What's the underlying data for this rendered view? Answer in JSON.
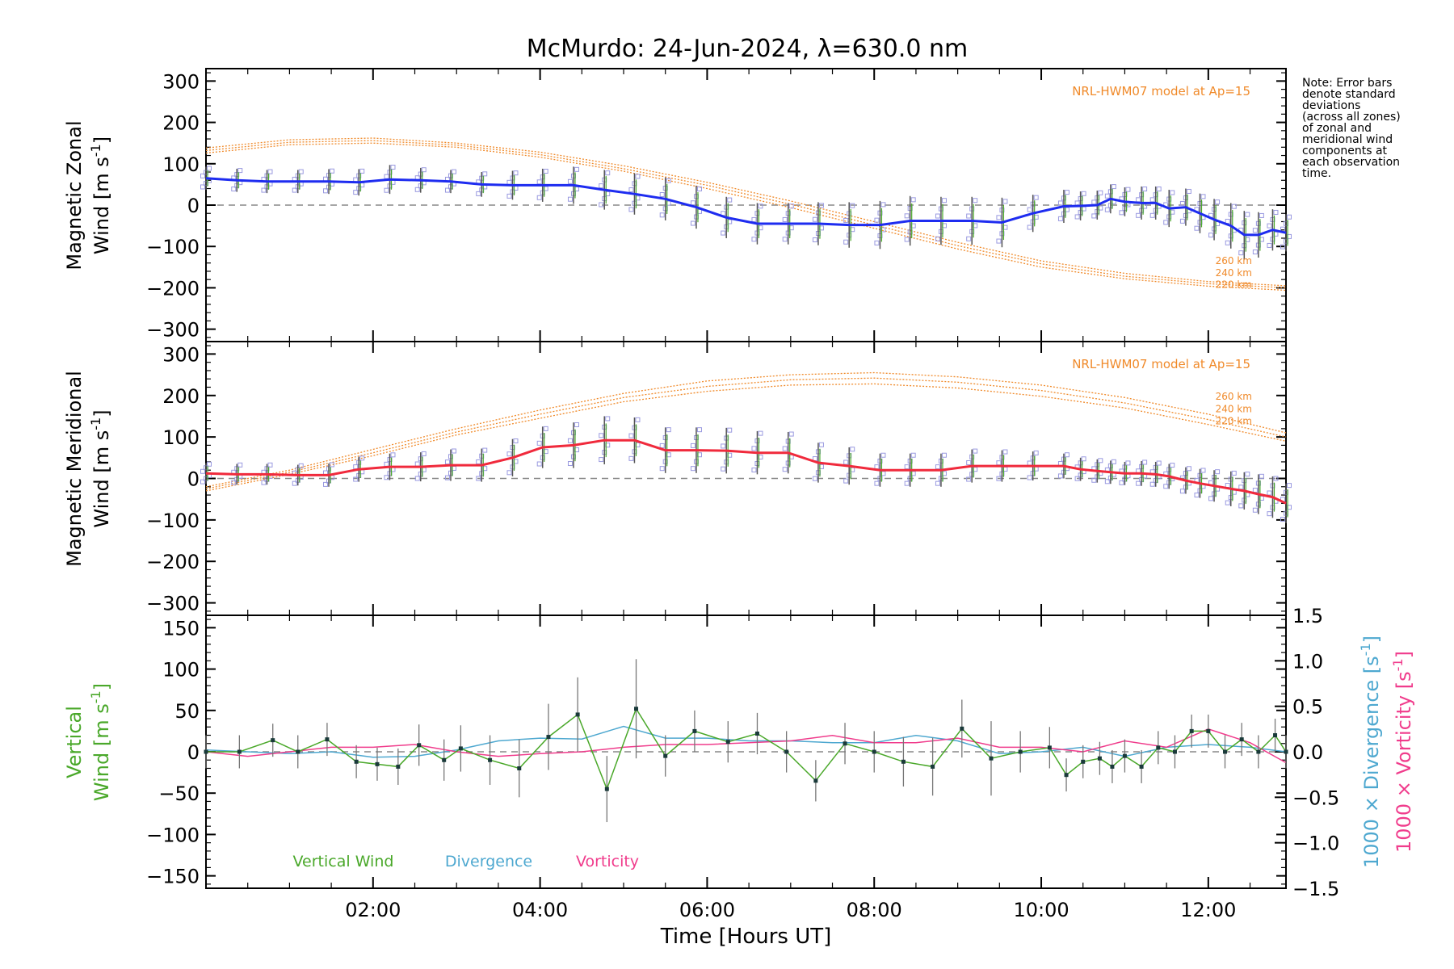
{
  "title": "McMurdo: 24-Jun-2024, λ=630.0 nm",
  "note_lines": [
    "Note: Error bars",
    "denote standard",
    "deviations",
    "(across all zones)",
    "of zonal and",
    "meridional wind",
    "components at",
    "each observation",
    "time."
  ],
  "colors": {
    "zonal": "#1e2cf0",
    "meridional": "#f02a3c",
    "model": "#f08a2a",
    "vertical": "#4aa82a",
    "divergence": "#4ea8d0",
    "vorticity": "#f03c8c",
    "errorbar": "#555555",
    "scatter": "#9a9ae0"
  },
  "chart_data": [
    {
      "type": "line",
      "name": "zonal",
      "ylabel_line1": "Magnetic Zonal",
      "ylabel_line2_prefix": "Wind [m s",
      "ylabel_sup": "-1",
      "ylabel_close": "]",
      "ylim": [
        -330,
        330
      ],
      "yticks": [
        "300",
        "200",
        "100",
        "0",
        "−100",
        "−200",
        "−300"
      ],
      "ytick_values": [
        300,
        200,
        100,
        0,
        -100,
        -200,
        -300
      ],
      "model_label": "NRL-HWM07 model at Ap=15",
      "model_alt_labels": [
        "260 km",
        "240 km",
        "220 km"
      ],
      "x": [
        0.0,
        0.37,
        0.73,
        1.1,
        1.47,
        1.83,
        2.2,
        2.57,
        2.93,
        3.3,
        3.67,
        4.03,
        4.4,
        4.77,
        5.13,
        5.5,
        5.87,
        6.23,
        6.6,
        6.97,
        7.33,
        7.7,
        8.07,
        8.43,
        8.8,
        9.17,
        9.53,
        9.9,
        10.27,
        10.47,
        10.67,
        10.83,
        11.0,
        11.2,
        11.37,
        11.53,
        11.73,
        11.9,
        12.07,
        12.27,
        12.43,
        12.6,
        12.77,
        12.93
      ],
      "y": [
        65,
        60,
        57,
        57,
        57,
        55,
        62,
        60,
        57,
        50,
        48,
        48,
        48,
        37,
        27,
        15,
        -5,
        -30,
        -45,
        -45,
        -45,
        -48,
        -48,
        -38,
        -38,
        -38,
        -42,
        -20,
        -3,
        -2,
        0,
        15,
        8,
        5,
        5,
        -8,
        -5,
        -20,
        -35,
        -50,
        -72,
        -72,
        -60,
        -67
      ],
      "err": [
        28,
        28,
        28,
        28,
        30,
        32,
        35,
        30,
        28,
        30,
        35,
        40,
        45,
        48,
        50,
        52,
        52,
        50,
        50,
        50,
        52,
        55,
        58,
        60,
        58,
        58,
        60,
        45,
        40,
        35,
        35,
        35,
        35,
        40,
        40,
        45,
        45,
        48,
        50,
        55,
        58,
        55,
        50,
        45
      ],
      "model": {
        "x": [
          0,
          1,
          2,
          3,
          4,
          5,
          6,
          7,
          8,
          9,
          10,
          11,
          12,
          12.93
        ],
        "curves": [
          [
            138,
            158,
            162,
            150,
            128,
            95,
            55,
            10,
            -40,
            -90,
            -135,
            -165,
            -185,
            -195
          ],
          [
            132,
            152,
            156,
            145,
            122,
            88,
            48,
            2,
            -48,
            -98,
            -142,
            -172,
            -190,
            -200
          ],
          [
            126,
            146,
            150,
            140,
            116,
            82,
            40,
            -6,
            -56,
            -106,
            -150,
            -178,
            -196,
            -206
          ]
        ]
      },
      "scatter_offsets": [
        -30,
        -18,
        -8,
        8,
        20,
        34
      ]
    },
    {
      "type": "line",
      "name": "meridional",
      "ylabel_line1": "Magnetic Meridional",
      "ylabel_line2_prefix": "Wind [m s",
      "ylabel_sup": "-1",
      "ylabel_close": "]",
      "ylim": [
        -330,
        330
      ],
      "yticks": [
        "300",
        "200",
        "100",
        "0",
        "−100",
        "−200",
        "−300"
      ],
      "ytick_values": [
        300,
        200,
        100,
        0,
        -100,
        -200,
        -300
      ],
      "model_label": "NRL-HWM07 model at Ap=15",
      "model_alt_labels": [
        "260 km",
        "240 km",
        "220 km"
      ],
      "x": [
        0.0,
        0.37,
        0.73,
        1.1,
        1.47,
        1.83,
        2.2,
        2.57,
        2.93,
        3.3,
        3.67,
        4.03,
        4.4,
        4.77,
        5.13,
        5.5,
        5.87,
        6.23,
        6.6,
        6.97,
        7.33,
        7.7,
        8.07,
        8.43,
        8.8,
        9.17,
        9.53,
        9.9,
        10.27,
        10.47,
        10.67,
        10.83,
        11.0,
        11.2,
        11.37,
        11.53,
        11.73,
        11.9,
        12.07,
        12.27,
        12.43,
        12.6,
        12.77,
        12.93
      ],
      "y": [
        12,
        10,
        10,
        8,
        8,
        22,
        28,
        28,
        32,
        32,
        50,
        75,
        80,
        92,
        92,
        68,
        68,
        67,
        62,
        62,
        38,
        30,
        20,
        20,
        20,
        30,
        30,
        30,
        30,
        22,
        18,
        15,
        12,
        12,
        10,
        5,
        -5,
        -12,
        -18,
        -25,
        -30,
        -38,
        -45,
        -60
      ],
      "err": [
        25,
        25,
        25,
        25,
        28,
        30,
        32,
        35,
        38,
        40,
        45,
        50,
        55,
        58,
        55,
        55,
        55,
        55,
        52,
        50,
        48,
        45,
        40,
        40,
        40,
        40,
        38,
        35,
        30,
        28,
        28,
        28,
        28,
        30,
        30,
        30,
        32,
        35,
        38,
        42,
        45,
        48,
        50,
        48
      ],
      "model": {
        "x": [
          0,
          1,
          2,
          3,
          4,
          5,
          6,
          7,
          8,
          9,
          10,
          11,
          12,
          12.93
        ],
        "curves": [
          [
            -20,
            20,
            70,
            120,
            165,
            205,
            235,
            250,
            255,
            245,
            225,
            195,
            155,
            110
          ],
          [
            -25,
            15,
            62,
            112,
            155,
            195,
            222,
            238,
            242,
            232,
            212,
            182,
            142,
            100
          ],
          [
            -30,
            10,
            55,
            105,
            145,
            185,
            210,
            225,
            228,
            218,
            198,
            170,
            130,
            90
          ]
        ]
      },
      "scatter_offsets": [
        -32,
        -20,
        -8,
        8,
        22,
        36
      ]
    },
    {
      "type": "line",
      "name": "vertical",
      "ylabel_line1": "Vertical",
      "ylabel_line2_prefix": "Wind [m s",
      "ylabel_sup": "-1",
      "ylabel_close": "]",
      "ylim": [
        -165,
        165
      ],
      "yticks": [
        "150",
        "100",
        "50",
        "0",
        "−50",
        "−100",
        "−150"
      ],
      "ytick_values": [
        150,
        100,
        50,
        0,
        -50,
        -100,
        -150
      ],
      "right_ylim": [
        -1.5,
        1.5
      ],
      "right_yticks": [
        "1.5",
        "1.0",
        "0.5",
        "0.0",
        "−0.5",
        "−1.0",
        "−1.5"
      ],
      "right_ytick_values": [
        1.5,
        1.0,
        0.5,
        0.0,
        -0.5,
        -1.0,
        -1.5
      ],
      "right_label_div": "1000 × Divergence [s",
      "right_label_vort": "1000 × Vorticity [s",
      "right_label_sup": "-1",
      "right_label_close": "]",
      "legend": [
        "Vertical Wind",
        "Divergence",
        "Vorticity"
      ],
      "vertical_wind": {
        "x": [
          0.0,
          0.4,
          0.8,
          1.1,
          1.45,
          1.8,
          2.05,
          2.3,
          2.55,
          2.85,
          3.05,
          3.4,
          3.75,
          4.1,
          4.45,
          4.8,
          5.15,
          5.5,
          5.85,
          6.25,
          6.6,
          6.95,
          7.3,
          7.65,
          8.0,
          8.35,
          8.7,
          9.05,
          9.4,
          9.75,
          10.1,
          10.3,
          10.5,
          10.7,
          10.85,
          11.0,
          11.2,
          11.4,
          11.6,
          11.8,
          12.0,
          12.2,
          12.4,
          12.6,
          12.8,
          12.93
        ],
        "y": [
          0,
          0,
          14,
          0,
          15,
          -12,
          -15,
          -18,
          8,
          -10,
          4,
          -10,
          -20,
          18,
          45,
          -45,
          52,
          -5,
          25,
          12,
          22,
          0,
          -35,
          10,
          0,
          -12,
          -18,
          28,
          -8,
          0,
          5,
          -28,
          -12,
          -8,
          -18,
          -5,
          -18,
          5,
          0,
          25,
          25,
          0,
          15,
          0,
          20,
          0
        ],
        "err": [
          20,
          20,
          20,
          20,
          20,
          20,
          20,
          22,
          25,
          25,
          28,
          30,
          35,
          40,
          45,
          40,
          60,
          25,
          25,
          25,
          25,
          25,
          25,
          25,
          25,
          30,
          35,
          35,
          45,
          25,
          25,
          20,
          20,
          20,
          20,
          20,
          20,
          20,
          20,
          20,
          20,
          20,
          20,
          20,
          20,
          20
        ]
      },
      "divergence": {
        "x": [
          0.0,
          0.5,
          1.0,
          1.5,
          2.0,
          2.5,
          3.0,
          3.5,
          4.0,
          4.5,
          5.0,
          5.5,
          6.0,
          6.5,
          7.0,
          7.5,
          8.0,
          8.5,
          9.0,
          9.5,
          10.0,
          10.5,
          11.0,
          11.5,
          12.0,
          12.5,
          12.93
        ],
        "y": [
          0.02,
          0.0,
          -0.02,
          0.0,
          -0.06,
          -0.05,
          0.02,
          0.12,
          0.15,
          0.14,
          0.28,
          0.15,
          0.15,
          0.12,
          0.12,
          0.1,
          0.1,
          0.18,
          0.12,
          -0.02,
          0.0,
          0.05,
          -0.05,
          0.05,
          0.08,
          0.05,
          0.0
        ],
        "scale_note": "values in 1000 × Divergence units"
      },
      "vorticity": {
        "x": [
          0.0,
          0.5,
          1.0,
          1.5,
          2.0,
          2.5,
          3.0,
          3.5,
          4.0,
          4.5,
          5.0,
          5.5,
          6.0,
          6.5,
          7.0,
          7.5,
          8.0,
          8.5,
          9.0,
          9.5,
          10.0,
          10.5,
          11.0,
          11.5,
          12.0,
          12.5,
          12.93
        ],
        "y": [
          0.0,
          -0.05,
          0.0,
          0.05,
          0.05,
          0.08,
          0.0,
          -0.05,
          -0.02,
          0.0,
          0.05,
          0.08,
          0.08,
          0.1,
          0.12,
          0.18,
          0.1,
          0.1,
          0.15,
          0.05,
          0.05,
          0.0,
          0.12,
          0.05,
          0.25,
          0.1,
          -0.12
        ]
      }
    }
  ],
  "x_axis": {
    "xlim": [
      0.0,
      12.93
    ],
    "label": "Time [Hours UT]",
    "tick_values": [
      2,
      4,
      6,
      8,
      10,
      12
    ],
    "tick_labels": [
      "02:00",
      "04:00",
      "06:00",
      "08:00",
      "10:00",
      "12:00"
    ]
  }
}
